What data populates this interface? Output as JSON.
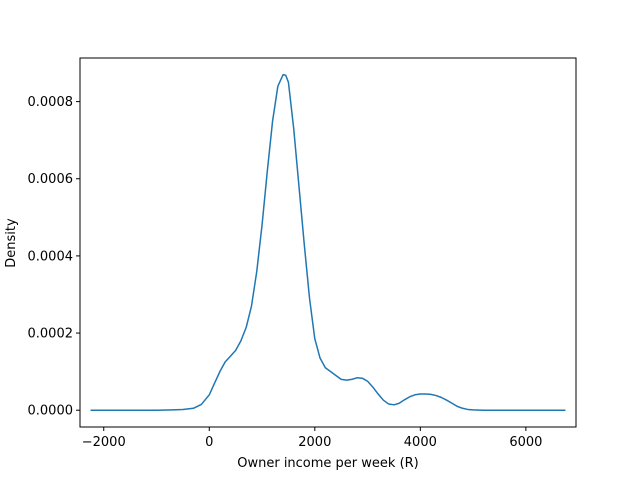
{
  "chart_data": {
    "type": "line",
    "title": "",
    "xlabel": "Owner income per week (R)",
    "ylabel": "Density",
    "xlim": [
      -2450,
      6950
    ],
    "ylim": [
      -4.35e-05,
      0.000913
    ],
    "xticks": [
      -2000,
      0,
      2000,
      4000,
      6000
    ],
    "xtick_labels": [
      "−2000",
      "0",
      "2000",
      "4000",
      "6000"
    ],
    "yticks": [
      0.0,
      0.0002,
      0.0004,
      0.0006,
      0.0008
    ],
    "ytick_labels": [
      "0.0000",
      "0.0002",
      "0.0004",
      "0.0006",
      "0.0008"
    ],
    "grid": false,
    "series": [
      {
        "color": "#1f77b4",
        "x": [
          -2250,
          -1500,
          -1000,
          -700,
          -500,
          -300,
          -150,
          0,
          100,
          200,
          300,
          400,
          500,
          600,
          700,
          800,
          900,
          1000,
          1100,
          1200,
          1300,
          1400,
          1450,
          1500,
          1600,
          1700,
          1800,
          1900,
          2000,
          2100,
          2200,
          2300,
          2400,
          2500,
          2600,
          2700,
          2800,
          2900,
          3000,
          3100,
          3200,
          3300,
          3400,
          3500,
          3600,
          3700,
          3800,
          3900,
          4000,
          4100,
          4200,
          4300,
          4400,
          4500,
          4600,
          4700,
          4800,
          4900,
          5000,
          5200,
          5500,
          6000,
          6750
        ],
        "y": [
          0.0,
          0.0,
          0.0,
          1e-06,
          2e-06,
          5e-06,
          1.5e-05,
          4e-05,
          7e-05,
          0.0001,
          0.000125,
          0.00014,
          0.000155,
          0.00018,
          0.000215,
          0.00027,
          0.00036,
          0.00048,
          0.00062,
          0.00075,
          0.00084,
          0.00087,
          0.000868,
          0.00085,
          0.00073,
          0.00058,
          0.00043,
          0.00029,
          0.000185,
          0.000135,
          0.00011,
          0.0001,
          9e-05,
          8e-05,
          7.8e-05,
          8e-05,
          8.4e-05,
          8.3e-05,
          7.5e-05,
          6e-05,
          4.2e-05,
          2.6e-05,
          1.6e-05,
          1.4e-05,
          1.8e-05,
          2.7e-05,
          3.5e-05,
          4e-05,
          4.2e-05,
          4.2e-05,
          4.1e-05,
          3.8e-05,
          3.3e-05,
          2.6e-05,
          1.8e-05,
          1e-05,
          5e-06,
          2e-06,
          1e-06,
          0.0,
          0.0,
          0.0,
          0.0
        ]
      }
    ]
  }
}
